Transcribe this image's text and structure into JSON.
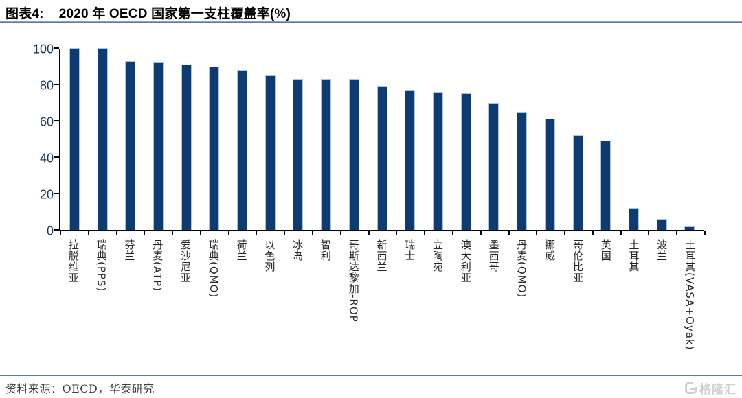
{
  "header": {
    "tag": "图表4:",
    "title": "2020 年 OECD 国家第一支柱覆盖率(%)"
  },
  "chart_data": {
    "type": "bar",
    "title": "2020 年 OECD 国家第一支柱覆盖率(%)",
    "categories": [
      "拉脱维亚",
      "瑞典(PPS)",
      "芬兰",
      "丹麦(ATP)",
      "爱沙尼亚",
      "瑞典(QMO)",
      "荷兰",
      "以色列",
      "冰岛",
      "智利",
      "哥斯达黎加-ROP",
      "新西兰",
      "瑞士",
      "立陶宛",
      "澳大利亚",
      "墨西哥",
      "丹麦(QMO)",
      "挪威",
      "哥伦比亚",
      "英国",
      "土耳其",
      "波兰",
      "土耳其(VASA+Oyak)"
    ],
    "values": [
      100,
      100,
      93,
      92,
      91,
      90,
      88,
      85,
      83,
      83,
      83,
      79,
      77,
      76,
      75,
      70,
      65,
      61,
      52,
      49,
      12,
      6,
      2
    ],
    "xlabel": "",
    "ylabel": "",
    "ylim": [
      0,
      100
    ],
    "yticks": [
      0,
      20,
      40,
      60,
      80,
      100
    ],
    "grid": false,
    "legend": "none",
    "bar_color": "#0d3b72",
    "bar_border_color": "#aec3de"
  },
  "footer": {
    "source": "资料来源：OECD，华泰研究",
    "logo_text": "格隆汇"
  },
  "colors": {
    "rule_line": "#5b7ba4",
    "axis": "#000000",
    "y_tick_label": "#17375e",
    "category_label": "#262626"
  }
}
